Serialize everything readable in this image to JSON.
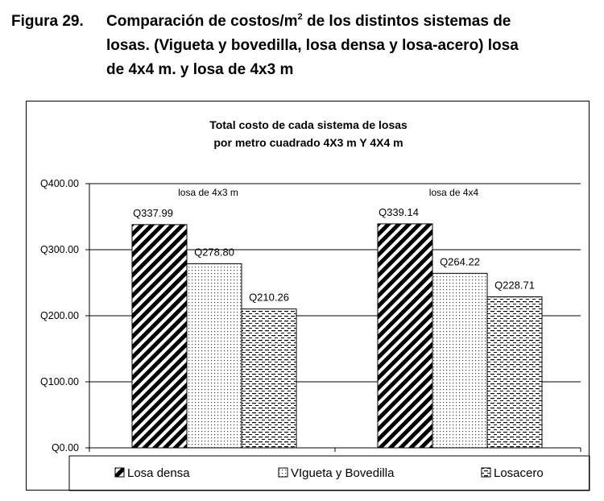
{
  "caption": {
    "label": "Figura 29.",
    "line1_pre": "Comparación de costos/m",
    "line1_sup": "2",
    "line1_post": " de los distintos sistemas de",
    "line2": "losas. (Vigueta y bovedilla, losa densa y losa-acero) losa",
    "line3": "de 4x4 m. y losa de 4x3 m"
  },
  "chart_data": {
    "type": "bar",
    "title": [
      "Total costo de cada sistema de losas",
      "por metro cuadrado 4X3 m Y 4X4 m"
    ],
    "categories": [
      "losa de 4x3 m",
      "losa de 4x4"
    ],
    "series": [
      {
        "name": "Losa densa",
        "values": [
          337.99,
          339.14
        ],
        "labels": [
          "Q337.99",
          "Q339.14"
        ],
        "pattern": "diagonal-hatch"
      },
      {
        "name": "VIgueta y Bovedilla",
        "values": [
          278.8,
          264.22
        ],
        "labels": [
          "Q278.80",
          "Q264.22"
        ],
        "pattern": "dots"
      },
      {
        "name": "Losacero",
        "values": [
          210.26,
          228.71
        ],
        "labels": [
          "Q210.26",
          "Q228.71"
        ],
        "pattern": "dashes"
      }
    ],
    "ylim": [
      0,
      400
    ],
    "yticks": [
      0,
      100,
      200,
      300,
      400
    ],
    "ytick_labels": [
      "Q0.00",
      "Q100.00",
      "Q200.00",
      "Q300.00",
      "Q400.00"
    ],
    "xlabel": "",
    "ylabel": "",
    "grid": true,
    "legend_position": "bottom"
  }
}
